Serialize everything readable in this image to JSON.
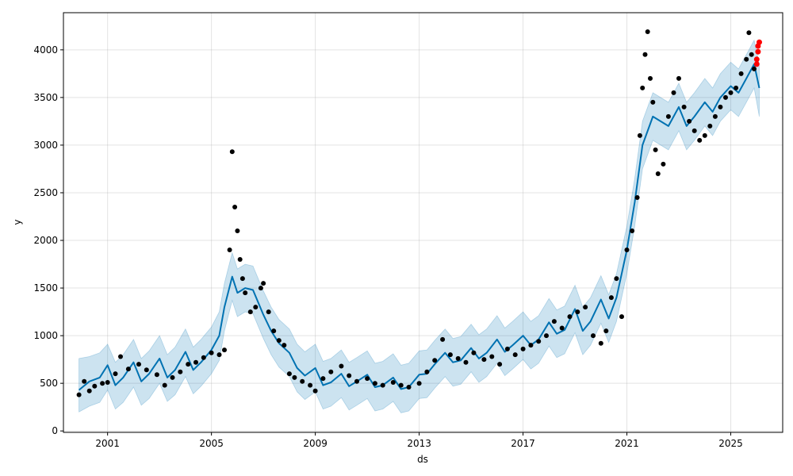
{
  "chart_data": {
    "type": "scatter",
    "xlabel": "ds",
    "ylabel": "y",
    "xlim": [
      1999.3,
      2027.0
    ],
    "ylim": [
      -15,
      4390
    ],
    "x_ticks": [
      2001,
      2005,
      2009,
      2013,
      2017,
      2021,
      2025
    ],
    "x_tick_labels": [
      "2001",
      "2005",
      "2009",
      "2013",
      "2017",
      "2021",
      "2025"
    ],
    "y_ticks": [
      0,
      500,
      1000,
      1500,
      2000,
      2500,
      3000,
      3500,
      4000
    ],
    "y_tick_labels": [
      "0",
      "500",
      "1000",
      "1500",
      "2000",
      "2500",
      "3000",
      "3500",
      "4000"
    ],
    "grid": true,
    "colors": {
      "observed": "#000000",
      "forecast": "#0072B2",
      "interval": "#0072B2",
      "recent": "#ff0000"
    },
    "series": [
      {
        "kind": "forecast_line",
        "x": [
          1999.9,
          2000.3,
          2000.7,
          2001.0,
          2001.3,
          2001.6,
          2002.0,
          2002.3,
          2002.6,
          2003.0,
          2003.3,
          2003.6,
          2004.0,
          2004.3,
          2004.6,
          2005.0,
          2005.3,
          2005.5,
          2005.8,
          2006.0,
          2006.3,
          2006.6,
          2007.0,
          2007.3,
          2007.6,
          2008.0,
          2008.3,
          2008.6,
          2009.0,
          2009.3,
          2009.6,
          2010.0,
          2010.3,
          2010.6,
          2011.0,
          2011.3,
          2011.6,
          2012.0,
          2012.3,
          2012.6,
          2013.0,
          2013.3,
          2013.6,
          2014.0,
          2014.3,
          2014.6,
          2015.0,
          2015.3,
          2015.6,
          2016.0,
          2016.3,
          2016.6,
          2017.0,
          2017.3,
          2017.6,
          2018.0,
          2018.3,
          2018.6,
          2019.0,
          2019.3,
          2019.6,
          2020.0,
          2020.3,
          2020.6,
          2021.0,
          2021.3,
          2021.6,
          2022.0,
          2022.3,
          2022.6,
          2023.0,
          2023.3,
          2023.6,
          2024.0,
          2024.3,
          2024.6,
          2025.0,
          2025.3,
          2025.6,
          2025.9,
          2026.1
        ],
        "y": [
          430,
          520,
          560,
          690,
          480,
          560,
          720,
          520,
          600,
          760,
          560,
          640,
          830,
          640,
          720,
          850,
          1000,
          1300,
          1620,
          1450,
          1500,
          1480,
          1220,
          1050,
          920,
          820,
          660,
          580,
          660,
          480,
          510,
          600,
          470,
          520,
          590,
          460,
          480,
          560,
          440,
          460,
          590,
          600,
          700,
          820,
          720,
          740,
          870,
          760,
          820,
          960,
          830,
          900,
          1000,
          900,
          960,
          1140,
          1020,
          1060,
          1280,
          1050,
          1150,
          1380,
          1180,
          1400,
          1900,
          2400,
          3000,
          3300,
          3250,
          3200,
          3400,
          3200,
          3300,
          3450,
          3350,
          3500,
          3620,
          3550,
          3700,
          3850,
          3600
        ]
      },
      {
        "kind": "uncertainty_interval",
        "x": [
          1999.9,
          2000.3,
          2000.7,
          2001.0,
          2001.3,
          2001.6,
          2002.0,
          2002.3,
          2002.6,
          2003.0,
          2003.3,
          2003.6,
          2004.0,
          2004.3,
          2004.6,
          2005.0,
          2005.3,
          2005.5,
          2005.8,
          2006.0,
          2006.3,
          2006.6,
          2007.0,
          2007.3,
          2007.6,
          2008.0,
          2008.3,
          2008.6,
          2009.0,
          2009.3,
          2009.6,
          2010.0,
          2010.3,
          2010.6,
          2011.0,
          2011.3,
          2011.6,
          2012.0,
          2012.3,
          2012.6,
          2013.0,
          2013.3,
          2013.6,
          2014.0,
          2014.3,
          2014.6,
          2015.0,
          2015.3,
          2015.6,
          2016.0,
          2016.3,
          2016.6,
          2017.0,
          2017.3,
          2017.6,
          2018.0,
          2018.3,
          2018.6,
          2019.0,
          2019.3,
          2019.6,
          2020.0,
          2020.3,
          2020.6,
          2021.0,
          2021.3,
          2021.6,
          2022.0,
          2022.3,
          2022.6,
          2023.0,
          2023.3,
          2023.6,
          2024.0,
          2024.3,
          2024.6,
          2025.0,
          2025.3,
          2025.6,
          2025.9,
          2026.1
        ],
        "lower": [
          200,
          260,
          300,
          430,
          230,
          300,
          460,
          270,
          340,
          500,
          310,
          380,
          570,
          390,
          470,
          600,
          740,
          1050,
          1370,
          1200,
          1250,
          1230,
          970,
          800,
          670,
          570,
          410,
          330,
          410,
          230,
          260,
          350,
          220,
          270,
          340,
          210,
          230,
          310,
          190,
          210,
          340,
          350,
          450,
          570,
          470,
          490,
          620,
          510,
          570,
          710,
          580,
          650,
          750,
          650,
          710,
          890,
          770,
          810,
          1030,
          800,
          900,
          1130,
          930,
          1150,
          1650,
          2150,
          2750,
          3050,
          3000,
          2950,
          3150,
          2950,
          3050,
          3200,
          3100,
          3250,
          3370,
          3300,
          3450,
          3600,
          3300
        ],
        "upper": [
          760,
          780,
          820,
          910,
          720,
          800,
          960,
          760,
          840,
          1000,
          800,
          880,
          1070,
          880,
          960,
          1090,
          1250,
          1550,
          1870,
          1700,
          1750,
          1730,
          1470,
          1300,
          1170,
          1070,
          910,
          830,
          910,
          730,
          760,
          850,
          720,
          770,
          840,
          710,
          730,
          810,
          690,
          710,
          840,
          850,
          950,
          1070,
          970,
          990,
          1120,
          1010,
          1070,
          1210,
          1080,
          1150,
          1250,
          1150,
          1210,
          1390,
          1270,
          1310,
          1530,
          1300,
          1400,
          1630,
          1430,
          1650,
          2150,
          2650,
          3250,
          3550,
          3500,
          3450,
          3650,
          3450,
          3550,
          3700,
          3600,
          3750,
          3870,
          3800,
          3950,
          4100,
          3850
        ]
      },
      {
        "kind": "observed_points",
        "x": [
          1999.9,
          2000.1,
          2000.3,
          2000.5,
          2000.8,
          2001.0,
          2001.3,
          2001.5,
          2001.8,
          2002.2,
          2002.5,
          2002.9,
          2003.2,
          2003.5,
          2003.8,
          2004.1,
          2004.4,
          2004.7,
          2005.0,
          2005.3,
          2005.5,
          2005.7,
          2005.8,
          2005.9,
          2006.0,
          2006.1,
          2006.2,
          2006.3,
          2006.5,
          2006.7,
          2006.9,
          2007.0,
          2007.2,
          2007.4,
          2007.6,
          2007.8,
          2008.0,
          2008.2,
          2008.5,
          2008.8,
          2009.0,
          2009.3,
          2009.6,
          2010.0,
          2010.3,
          2010.6,
          2011.0,
          2011.3,
          2011.6,
          2012.0,
          2012.3,
          2012.6,
          2013.0,
          2013.3,
          2013.6,
          2013.9,
          2014.2,
          2014.5,
          2014.8,
          2015.1,
          2015.5,
          2015.8,
          2016.1,
          2016.4,
          2016.7,
          2017.0,
          2017.3,
          2017.6,
          2017.9,
          2018.2,
          2018.5,
          2018.8,
          2019.1,
          2019.4,
          2019.7,
          2020.0,
          2020.2,
          2020.4,
          2020.6,
          2020.8,
          2021.0,
          2021.2,
          2021.4,
          2021.5,
          2021.6,
          2021.7,
          2021.8,
          2021.9,
          2022.0,
          2022.1,
          2022.2,
          2022.4,
          2022.6,
          2022.8,
          2023.0,
          2023.2,
          2023.4,
          2023.6,
          2023.8,
          2024.0,
          2024.2,
          2024.4,
          2024.6,
          2024.8,
          2025.0,
          2025.2,
          2025.4,
          2025.6,
          2025.7,
          2025.8,
          2025.9
        ],
        "y": [
          380,
          520,
          420,
          470,
          500,
          510,
          600,
          780,
          650,
          700,
          640,
          590,
          480,
          560,
          620,
          700,
          720,
          770,
          820,
          800,
          850,
          1900,
          2930,
          2350,
          2100,
          1800,
          1600,
          1450,
          1250,
          1300,
          1500,
          1550,
          1250,
          1050,
          950,
          900,
          600,
          560,
          520,
          480,
          420,
          550,
          620,
          680,
          580,
          520,
          550,
          500,
          480,
          510,
          480,
          460,
          500,
          620,
          740,
          960,
          800,
          760,
          720,
          820,
          750,
          780,
          700,
          860,
          800,
          860,
          900,
          940,
          1000,
          1150,
          1080,
          1200,
          1250,
          1300,
          1000,
          920,
          1050,
          1400,
          1600,
          1200,
          1900,
          2100,
          2450,
          3100,
          3600,
          3950,
          4190,
          3700,
          3450,
          2950,
          2700,
          2800,
          3300,
          3550,
          3700,
          3400,
          3250,
          3150,
          3050,
          3100,
          3200,
          3300,
          3400,
          3500,
          3550,
          3600,
          3750,
          3900,
          4180,
          3950,
          3800
        ]
      },
      {
        "kind": "recent_points",
        "x": [
          2026.0,
          2026.0,
          2026.05,
          2026.05,
          2026.1
        ],
        "y": [
          3850,
          3900,
          3980,
          4040,
          4080
        ]
      }
    ]
  }
}
